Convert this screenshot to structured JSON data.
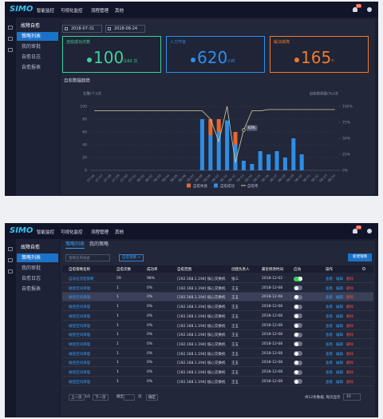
{
  "app": {
    "logo": "SIMO",
    "nav": [
      "智能监控",
      "可视化监控",
      "流程管理",
      "其他"
    ],
    "badge": "99",
    "sidebar": {
      "title": "故障自愈",
      "items": [
        "策略列表",
        "我的审批",
        "自愈日志",
        "自愈报表"
      ],
      "active": 0
    }
  },
  "dashboard": {
    "dates": [
      "2018-07-31",
      "2018-08-24"
    ],
    "kpis": [
      {
        "label": "自愈成功次数",
        "value": 100,
        "suffix": "/160 次",
        "color": "#3fcf9c"
      },
      {
        "label": "人力节省",
        "value": 620,
        "suffix": "小时",
        "color": "#2d8ef0"
      },
      {
        "label": "解决故障",
        "value": 165,
        "suffix": "个",
        "color": "#f07a2b"
      }
    ],
    "chart_data": {
      "type": "bar",
      "title": "自愈数据趋势",
      "y_label": "告警(个)/次",
      "y2_label": "自愈数据量(%)/次",
      "categories": [
        "07-26",
        "07-27",
        "07-28",
        "07-29",
        "07-30",
        "07-31",
        "08-01",
        "08-02",
        "08-03",
        "08-04",
        "08-05",
        "08-06",
        "08-07",
        "08-08",
        "08-09",
        "08-10",
        "08-11",
        "08-12",
        "08-13",
        "08-14",
        "08-15",
        "08-16",
        "08-17",
        "08-18",
        "08-19",
        "08-20",
        "08-21",
        "08-22",
        "08-23",
        "08-24"
      ],
      "series": [
        {
          "name": "自愈失败",
          "color": "#e8662c",
          "values": [
            0,
            0,
            0,
            0,
            0,
            0,
            0,
            0,
            0,
            0,
            0,
            0,
            0,
            0,
            25,
            20,
            0,
            20,
            0,
            0,
            0,
            0,
            0,
            0,
            0,
            0,
            0,
            0,
            0,
            0
          ]
        },
        {
          "name": "自愈成功",
          "color": "#2f8de4",
          "values": [
            0,
            0,
            0,
            0,
            0,
            0,
            0,
            0,
            0,
            0,
            0,
            0,
            0,
            80,
            55,
            60,
            78,
            40,
            15,
            10,
            30,
            25,
            30,
            20,
            50,
            25,
            0,
            0,
            0,
            0
          ]
        },
        {
          "name": "自愈率",
          "color": "#d8d1a0",
          "axis": "y2",
          "values": [
            93,
            93,
            93,
            93,
            93,
            93,
            93,
            93,
            93,
            93,
            93,
            93,
            93,
            93,
            80,
            45,
            100,
            12,
            63,
            93,
            93,
            95,
            95,
            95,
            95,
            95,
            95,
            95,
            95,
            95
          ],
          "value_labels": [
            null,
            null,
            null,
            null,
            null,
            null,
            null,
            null,
            null,
            null,
            null,
            null,
            null,
            null,
            null,
            null,
            null,
            null,
            "63%",
            null,
            null,
            null,
            null,
            null,
            null,
            null,
            null,
            null,
            null,
            null
          ]
        }
      ],
      "stacked": true,
      "ylim": [
        0,
        100
      ],
      "yticks": [
        0,
        20,
        40,
        60,
        80,
        100
      ],
      "y2lim": [
        0,
        100
      ],
      "y2ticks": [
        {
          "value": 0,
          "label": "0%"
        },
        {
          "value": 25,
          "label": "25%"
        },
        {
          "value": 50,
          "label": "50%"
        },
        {
          "value": 75,
          "label": "75%"
        },
        {
          "value": 100,
          "label": "100%"
        }
      ],
      "grid": true,
      "legend": "bottom"
    }
  },
  "strategies": {
    "tabs": [
      "策略列表",
      "我的策略"
    ],
    "active_tab": 0,
    "search_placeholder": "策略名称搜索",
    "filter_tag": "自愈策略 ×",
    "new_button": "新建策略",
    "columns": [
      "自愈策略名称",
      "自愈次数",
      "成功率",
      "自愈范围",
      "创建负责人",
      "最近修改时间",
      "启动",
      "操作"
    ],
    "operations": [
      "查看",
      "编辑",
      "删除"
    ],
    "selected_row": 2,
    "rows": [
      [
        "自动化流程策略",
        59,
        "98%",
        "[192.168.1.194] 核心交换机",
        "张三",
        "2018-12-02"
      ],
      [
        "磁盘空间清理",
        1,
        "0%",
        "[192.168.1.194] 核心交换机",
        "王五",
        "2018-12-08"
      ],
      [
        "磁盘空间清理",
        1,
        "0%",
        "[192.168.1.194] 核心交换机",
        "王五",
        "2018-12-08"
      ],
      [
        "磁盘空间清理",
        1,
        "0%",
        "[192.168.1.194] 核心交换机",
        "王五",
        "2018-12-08"
      ],
      [
        "磁盘空间清理",
        1,
        "0%",
        "[192.168.1.194] 核心交换机",
        "王五",
        "2018-12-08"
      ],
      [
        "磁盘空间清理",
        1,
        "0%",
        "[192.168.1.194] 核心交换机",
        "王五",
        "2018-12-08"
      ],
      [
        "磁盘空间清理",
        1,
        "0%",
        "[192.168.1.194] 核心交换机",
        "王五",
        "2018-12-08"
      ],
      [
        "磁盘空间清理",
        1,
        "0%",
        "[192.168.1.194] 核心交换机",
        "王五",
        "2018-12-08"
      ],
      [
        "磁盘空间清理",
        1,
        "0%",
        "[192.168.1.194] 核心交换机",
        "王五",
        "2018-12-08"
      ],
      [
        "磁盘空间清理",
        1,
        "0%",
        "[192.168.1.194] 核心交换机",
        "王五",
        "2018-12-08"
      ],
      [
        "磁盘空间清理",
        1,
        "0%",
        "[192.168.1.194] 核心交换机",
        "王五",
        "2018-12-08"
      ],
      [
        "磁盘空间清理",
        1,
        "0%",
        "[192.168.1.194] 核心交换机",
        "王五",
        "2018-12-08"
      ]
    ],
    "enabled": [
      true,
      false,
      false,
      false,
      false,
      false,
      false,
      false,
      false,
      false,
      false,
      false
    ],
    "pagination": {
      "prev": "上一页",
      "page": "1/1",
      "next": "下一页",
      "jump": "跳至",
      "page_unit": "页",
      "confirm": "确定",
      "total": "共12条数据, 每页显示",
      "page_size": 15
    }
  }
}
